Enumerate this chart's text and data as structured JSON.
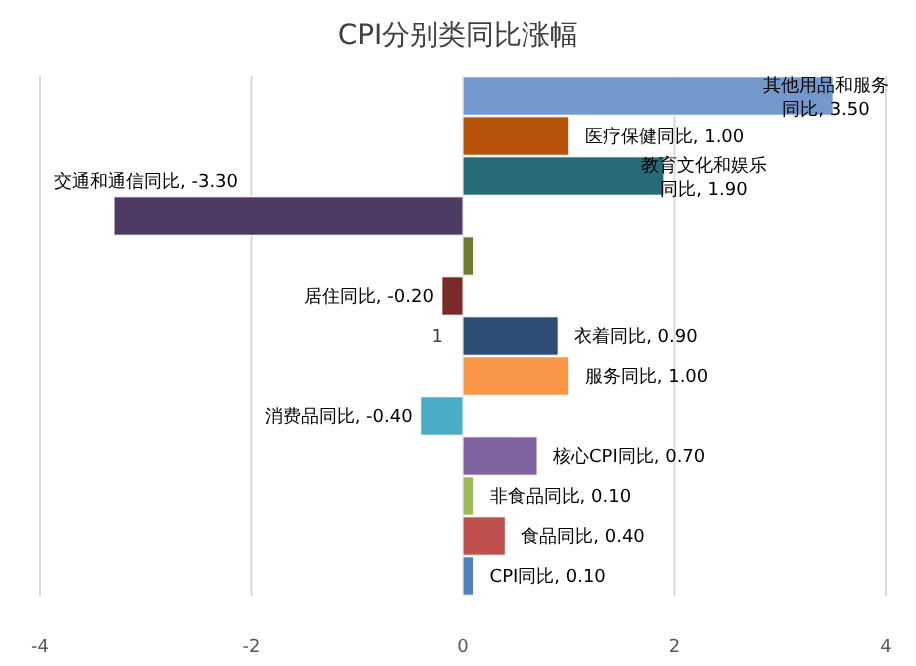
{
  "chart_data": {
    "type": "bar",
    "orientation": "horizontal",
    "title": "CPI分别类同比涨幅",
    "categories": [
      null,
      null,
      null,
      null,
      null,
      null,
      null,
      null,
      null,
      null,
      null,
      null,
      null
    ],
    "values": [
      3.5,
      1.0,
      1.9,
      -3.3,
      0.1,
      -0.2,
      0.9,
      1.0,
      -0.4,
      0.7,
      0.1,
      0.4,
      0.1
    ],
    "colors": [
      "#7399cc",
      "#b5530a",
      "#286b78",
      "#4e3b63",
      "#6b7c32",
      "#7b2a2a",
      "#2e4d74",
      "#f79646",
      "#4bacc6",
      "#8064a2",
      "#9bbb59",
      "#c0504d",
      "#4f81bd"
    ],
    "value_labels": [
      "其他用品和服务同比, 3.50",
      "医疗保健同比, 1.00",
      "教育文化和娱乐同比, 1.90",
      "交通和通信同比, -3.30",
      null,
      "居住同比, -0.20",
      "衣着同比, 0.90",
      "服务同比, 1.00",
      "消费品同比, -0.40",
      "核心CPI同比, 0.70",
      "非食品同比, 0.10",
      "食品同比, 0.40",
      "CPI同比, 0.10"
    ],
    "annotations": [
      "1"
    ],
    "xlim": [
      -4,
      4
    ],
    "xticks": [
      -4,
      -2,
      0,
      2,
      4
    ],
    "grid": "x",
    "tick_labels": "x"
  }
}
